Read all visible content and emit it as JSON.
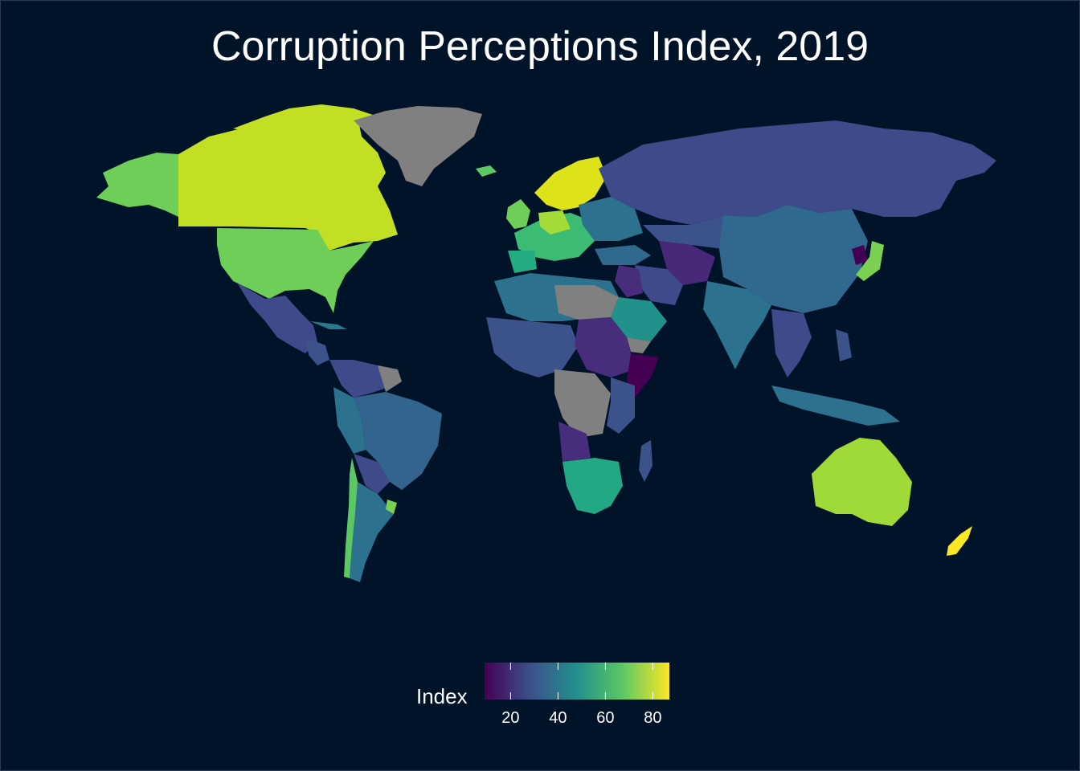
{
  "title": "Corruption Perceptions Index, 2019",
  "legend": {
    "title": "Index",
    "ticks": [
      "20",
      "40",
      "60",
      "80"
    ],
    "tick_values": [
      20,
      40,
      60,
      80
    ],
    "range": [
      9,
      87
    ],
    "colormap": "viridis",
    "colors": [
      "#440154",
      "#3b528b",
      "#21908c",
      "#5dc863",
      "#fde725"
    ]
  },
  "colors": {
    "background": "#011328",
    "no_data": "#808080"
  }
}
